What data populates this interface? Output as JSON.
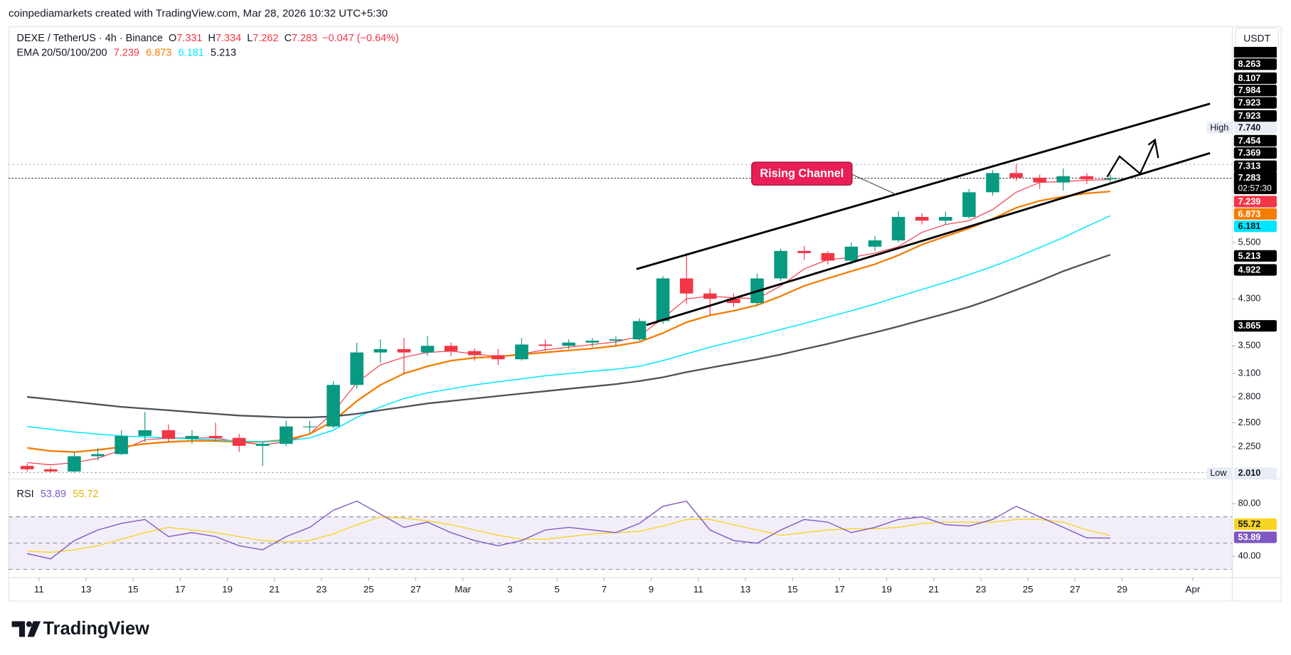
{
  "header": {
    "attribution": "coinpediamarkets created with TradingView.com, Mar 28, 2026 10:32 UTC+5:30"
  },
  "chart_data": {
    "type": "candlestick",
    "symbol": "DEXE / TetherUS · 4h · Binance",
    "ohlc_legend": [
      {
        "label": "O",
        "value": "7.331"
      },
      {
        "label": "H",
        "value": "7.334"
      },
      {
        "label": "L",
        "value": "7.262"
      },
      {
        "label": "C",
        "value": "7.283"
      }
    ],
    "change": "−0.047 (−0.64%)",
    "ema_label": "EMA 20/50/100/200",
    "currency": "USDT",
    "up_color": "#089981",
    "down_color": "#f23645",
    "log_scale": true,
    "x": [
      "2026-02-10",
      "2026-02-11",
      "2026-02-12",
      "2026-02-13",
      "2026-02-14",
      "2026-02-15",
      "2026-02-16",
      "2026-02-17",
      "2026-02-18",
      "2026-02-19",
      "2026-02-20",
      "2026-02-21",
      "2026-02-22",
      "2026-02-23",
      "2026-02-24",
      "2026-02-25",
      "2026-02-26",
      "2026-02-27",
      "2026-02-28",
      "2026-03-01",
      "2026-03-02",
      "2026-03-03",
      "2026-03-04",
      "2026-03-05",
      "2026-03-06",
      "2026-03-07",
      "2026-03-08",
      "2026-03-09",
      "2026-03-10",
      "2026-03-11",
      "2026-03-12",
      "2026-03-13",
      "2026-03-14",
      "2026-03-15",
      "2026-03-16",
      "2026-03-17",
      "2026-03-18",
      "2026-03-19",
      "2026-03-20",
      "2026-03-21",
      "2026-03-22",
      "2026-03-23",
      "2026-03-24",
      "2026-03-25",
      "2026-03-26",
      "2026-03-27",
      "2026-03-28"
    ],
    "open": [
      2.07,
      2.04,
      2.02,
      2.16,
      2.18,
      2.36,
      2.42,
      2.33,
      2.36,
      2.34,
      2.26,
      2.28,
      2.46,
      2.46,
      2.95,
      3.4,
      3.45,
      3.4,
      3.5,
      3.42,
      3.36,
      3.3,
      3.52,
      3.5,
      3.55,
      3.58,
      3.6,
      3.9,
      4.7,
      4.4,
      4.3,
      4.22,
      4.7,
      5.3,
      5.25,
      5.08,
      5.4,
      5.55,
      6.15,
      6.05,
      6.15,
      6.85,
      7.45,
      7.3,
      7.15,
      7.35,
      7.25
    ],
    "high": [
      2.09,
      2.06,
      2.2,
      2.24,
      2.42,
      2.62,
      2.48,
      2.42,
      2.5,
      2.38,
      2.3,
      2.52,
      2.52,
      3.0,
      3.55,
      3.6,
      3.62,
      3.65,
      3.55,
      3.46,
      3.45,
      3.62,
      3.6,
      3.6,
      3.62,
      3.65,
      3.95,
      4.75,
      5.25,
      4.5,
      4.4,
      4.8,
      5.35,
      5.42,
      5.3,
      5.5,
      5.65,
      6.3,
      6.25,
      6.3,
      6.95,
      7.55,
      7.74,
      7.4,
      7.6,
      7.45,
      7.4
    ],
    "low": [
      2.02,
      2.01,
      2.01,
      2.12,
      2.17,
      2.3,
      2.3,
      2.28,
      2.3,
      2.2,
      2.07,
      2.26,
      2.38,
      2.44,
      2.9,
      3.25,
      3.1,
      3.35,
      3.35,
      3.28,
      3.22,
      3.28,
      3.42,
      3.45,
      3.48,
      3.5,
      3.58,
      3.85,
      4.2,
      4.0,
      4.15,
      4.18,
      4.65,
      5.1,
      5.0,
      5.0,
      5.3,
      5.5,
      5.95,
      5.95,
      6.1,
      6.75,
      7.2,
      6.95,
      6.9,
      7.1,
      7.15
    ],
    "close": [
      2.04,
      2.02,
      2.16,
      2.18,
      2.36,
      2.42,
      2.33,
      2.36,
      2.34,
      2.26,
      2.28,
      2.46,
      2.46,
      2.95,
      3.4,
      3.45,
      3.4,
      3.5,
      3.42,
      3.36,
      3.3,
      3.52,
      3.5,
      3.55,
      3.58,
      3.6,
      3.9,
      4.7,
      4.4,
      4.3,
      4.22,
      4.7,
      5.3,
      5.25,
      5.08,
      5.4,
      5.55,
      6.15,
      6.05,
      6.15,
      6.85,
      7.45,
      7.3,
      7.15,
      7.35,
      7.25,
      7.283
    ],
    "emas": [
      {
        "color": "#f23645",
        "values": [
          2.1,
          2.08,
          2.1,
          2.14,
          2.22,
          2.32,
          2.34,
          2.34,
          2.34,
          2.3,
          2.27,
          2.3,
          2.38,
          2.62,
          2.98,
          3.22,
          3.33,
          3.4,
          3.42,
          3.38,
          3.34,
          3.38,
          3.44,
          3.48,
          3.52,
          3.56,
          3.65,
          3.95,
          4.3,
          4.35,
          4.32,
          4.3,
          4.55,
          4.9,
          5.1,
          5.15,
          5.25,
          5.4,
          5.75,
          5.95,
          6.05,
          6.35,
          6.85,
          7.15,
          7.18,
          7.22,
          7.239
        ]
      },
      {
        "color": "#f57c00",
        "values": [
          2.24,
          2.21,
          2.2,
          2.22,
          2.25,
          2.28,
          2.3,
          2.31,
          2.31,
          2.3,
          2.3,
          2.32,
          2.38,
          2.52,
          2.75,
          2.95,
          3.1,
          3.2,
          3.28,
          3.32,
          3.34,
          3.37,
          3.4,
          3.43,
          3.46,
          3.5,
          3.56,
          3.7,
          3.88,
          4.0,
          4.08,
          4.18,
          4.35,
          4.55,
          4.7,
          4.85,
          5.0,
          5.2,
          5.45,
          5.65,
          5.85,
          6.1,
          6.4,
          6.6,
          6.72,
          6.82,
          6.873
        ]
      },
      {
        "color": "#00e5ff",
        "values": [
          2.46,
          2.43,
          2.4,
          2.38,
          2.36,
          2.35,
          2.34,
          2.33,
          2.32,
          2.31,
          2.3,
          2.31,
          2.34,
          2.42,
          2.56,
          2.68,
          2.78,
          2.85,
          2.9,
          2.95,
          2.99,
          3.03,
          3.07,
          3.1,
          3.13,
          3.16,
          3.2,
          3.28,
          3.38,
          3.48,
          3.57,
          3.66,
          3.76,
          3.86,
          3.97,
          4.08,
          4.2,
          4.34,
          4.48,
          4.62,
          4.78,
          4.95,
          5.15,
          5.38,
          5.62,
          5.9,
          6.181
        ]
      },
      {
        "color": "#131722",
        "values": [
          2.8,
          2.77,
          2.74,
          2.71,
          2.68,
          2.66,
          2.64,
          2.62,
          2.6,
          2.58,
          2.57,
          2.56,
          2.56,
          2.57,
          2.6,
          2.64,
          2.68,
          2.72,
          2.75,
          2.78,
          2.81,
          2.84,
          2.87,
          2.9,
          2.93,
          2.96,
          3.0,
          3.05,
          3.12,
          3.18,
          3.24,
          3.3,
          3.37,
          3.45,
          3.53,
          3.62,
          3.71,
          3.81,
          3.92,
          4.03,
          4.15,
          4.3,
          4.47,
          4.65,
          4.85,
          5.03,
          5.213
        ]
      }
    ],
    "xlim": [
      "2026-02-10",
      "2026-04-02"
    ],
    "xticks": [
      {
        "value": "2026-02-11",
        "label": "11"
      },
      {
        "value": "2026-02-13",
        "label": "13"
      },
      {
        "value": "2026-02-15",
        "label": "15"
      },
      {
        "value": "2026-02-17",
        "label": "17"
      },
      {
        "value": "2026-02-19",
        "label": "19"
      },
      {
        "value": "2026-02-21",
        "label": "21"
      },
      {
        "value": "2026-02-23",
        "label": "23"
      },
      {
        "value": "2026-02-25",
        "label": "25"
      },
      {
        "value": "2026-02-27",
        "label": "27"
      },
      {
        "value": "2026-03-01",
        "label": "Mar"
      },
      {
        "value": "2026-03-03",
        "label": "3"
      },
      {
        "value": "2026-03-05",
        "label": "5"
      },
      {
        "value": "2026-03-07",
        "label": "7"
      },
      {
        "value": "2026-03-09",
        "label": "9"
      },
      {
        "value": "2026-03-11",
        "label": "11"
      },
      {
        "value": "2026-03-13",
        "label": "13"
      },
      {
        "value": "2026-03-15",
        "label": "15"
      },
      {
        "value": "2026-03-17",
        "label": "17"
      },
      {
        "value": "2026-03-19",
        "label": "19"
      },
      {
        "value": "2026-03-21",
        "label": "21"
      },
      {
        "value": "2026-03-23",
        "label": "23"
      },
      {
        "value": "2026-03-25",
        "label": "25"
      },
      {
        "value": "2026-03-27",
        "label": "27"
      },
      {
        "value": "2026-03-29",
        "label": "29"
      },
      {
        "value": "2026-04-01",
        "label": "Apr"
      }
    ],
    "ylim": [
      1.97,
      14.0
    ],
    "yticks": [
      {
        "value": 2.25,
        "label": "2.250"
      },
      {
        "value": 2.5,
        "label": "2.500"
      },
      {
        "value": 2.8,
        "label": "2.800"
      },
      {
        "value": 3.1,
        "label": "3.100"
      },
      {
        "value": 3.5,
        "label": "3.500"
      },
      {
        "value": 4.3,
        "label": "4.300"
      },
      {
        "value": 5.5,
        "label": "5.500"
      }
    ],
    "high_marker": {
      "text": "High",
      "value": 7.74,
      "value_label": "7.740"
    },
    "low_marker": {
      "text": "Low",
      "value": 2.01,
      "value_label": "2.010"
    },
    "price_badges": [
      "8.263",
      "8.107",
      "7.984",
      "7.923",
      "7.923",
      "7.454",
      "7.369",
      "7.313",
      "4.922",
      "3.865"
    ],
    "countdown": "02:57:30",
    "annotation": "Rising Channel",
    "rsi": {
      "label": "RSI",
      "color": "#7e57c2",
      "ma_color": "#f9d423",
      "values": [
        42,
        38,
        52,
        60,
        65,
        68,
        55,
        58,
        55,
        48,
        45,
        55,
        62,
        75,
        82,
        72,
        62,
        66,
        58,
        52,
        48,
        52,
        60,
        62,
        60,
        58,
        65,
        78,
        82,
        60,
        52,
        50,
        60,
        68,
        66,
        58,
        62,
        68,
        70,
        64,
        63,
        68,
        78,
        70,
        62,
        54,
        53.89
      ],
      "ma_values": [
        44,
        43,
        45,
        48,
        53,
        58,
        62,
        60,
        58,
        55,
        52,
        51,
        52,
        57,
        64,
        70,
        69,
        67,
        64,
        60,
        56,
        53,
        53,
        55,
        57,
        58,
        59,
        63,
        68,
        68,
        64,
        60,
        56,
        58,
        60,
        61,
        61,
        62,
        65,
        66,
        66,
        66,
        68,
        68,
        66,
        60,
        55.72
      ],
      "ylim": [
        25,
        97
      ],
      "yticks": [
        {
          "value": 80,
          "label": "80.00"
        },
        {
          "value": 40,
          "label": "40.00"
        }
      ],
      "band_levels": [
        70,
        50,
        30
      ]
    }
  },
  "footer": {
    "logo": "TradingView"
  }
}
